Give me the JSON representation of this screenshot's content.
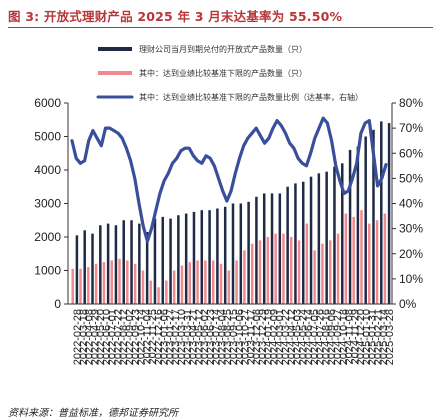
{
  "title": "图 3: 开放式理财产品 2025 年 3 月末达基率为 55.50%",
  "source": "资料来源：普益标准，德邦证券研究所",
  "colors": {
    "total": "#1f2a44",
    "reached": "#f08a8e",
    "ratio": "#3a4f9c",
    "title": "#b8363a"
  },
  "chart_data": {
    "type": "bar",
    "title": "图 3: 开放式理财产品 2025 年 3 月末达基率为 55.50%",
    "xlabel": "",
    "ylabel": "",
    "ylim": [
      0,
      6000
    ],
    "y2lim": [
      0,
      0.8
    ],
    "yticks": [
      "0",
      "1000",
      "2000",
      "3000",
      "4000",
      "5000",
      "6000"
    ],
    "y2ticks": [
      "0%",
      "10%",
      "20%",
      "30%",
      "40%",
      "50%",
      "60%",
      "70%",
      "80%"
    ],
    "legend_position": "top-right",
    "grid": false,
    "x_tick_labels": [
      "2022-02-28",
      "2022-03-18",
      "2022-04-08",
      "2022-04-29",
      "2022-05-20",
      "2022-06-10",
      "2022-07-01",
      "2022-07-22",
      "2022-08-12",
      "2022-09-02",
      "2022-09-23",
      "2022-10-14",
      "2022-11-04",
      "2022-11-25",
      "2022-12-16",
      "2023-01-06",
      "2023-01-27",
      "2023-02-17",
      "2023-03-10",
      "2023-03-31",
      "2023-04-21",
      "2023-05-12",
      "2023-06-02",
      "2023-06-23",
      "2023-07-14",
      "2023-08-04",
      "2023-08-25",
      "2023-09-15",
      "2023-10-06",
      "2023-10-27",
      "2023-11-17",
      "2023-12-08",
      "2023-12-29",
      "2024-01-19",
      "2024-02-09",
      "2024-03-01",
      "2024-03-22",
      "2024-04-12",
      "2024-05-03",
      "2024-05-24",
      "2024-06-14",
      "2024-07-05",
      "2024-07-26",
      "2024-08-16",
      "2024-09-06",
      "2024-09-27",
      "2024-10-18",
      "2024-11-08",
      "2024-11-29",
      "2024-12-20",
      "2025-01-10",
      "2025-01-31",
      "2025-02-21",
      "2025-03-14",
      "2025-03-28"
    ],
    "series": [
      {
        "name": "理财公司当月到期兑付的开放式产品数量（只）",
        "type": "bar",
        "axis": "left",
        "values": [
          2050,
          2200,
          2100,
          2350,
          2400,
          2350,
          2500,
          2500,
          2400,
          2150,
          2550,
          2600,
          2550,
          2650,
          2700,
          2750,
          2800,
          2800,
          2850,
          2900,
          3000,
          3000,
          3050,
          3200,
          3300,
          3300,
          3300,
          3500,
          3600,
          3650,
          3800,
          3900,
          3950,
          4100,
          4200,
          4600,
          4700,
          5000,
          5200,
          5450,
          5400
        ]
      },
      {
        "name": "其中：达到业绩比较基准下限的产品数量（只）",
        "type": "bar",
        "axis": "left",
        "values": [
          1050,
          1050,
          1100,
          1200,
          1250,
          1300,
          1350,
          1300,
          1200,
          1000,
          700,
          500,
          700,
          1000,
          1150,
          1250,
          1300,
          1300,
          1300,
          1200,
          1000,
          1300,
          1600,
          1800,
          1900,
          2000,
          2100,
          2100,
          2000,
          1900,
          2400,
          1600,
          1800,
          1900,
          2100,
          2700,
          2600,
          2800,
          2400,
          2500,
          2700
        ]
      },
      {
        "name": "其中：达到业绩比较基准下限的产品数量比例（达基率，右轴）",
        "type": "line",
        "axis": "right",
        "values": [
          0.65,
          0.58,
          0.56,
          0.57,
          0.65,
          0.69,
          0.66,
          0.63,
          0.7,
          0.7,
          0.69,
          0.68,
          0.66,
          0.62,
          0.57,
          0.5,
          0.4,
          0.31,
          0.25,
          0.3,
          0.37,
          0.44,
          0.49,
          0.52,
          0.56,
          0.58,
          0.61,
          0.62,
          0.62,
          0.59,
          0.57,
          0.56,
          0.59,
          0.58,
          0.55,
          0.5,
          0.45,
          0.41,
          0.45,
          0.52,
          0.58,
          0.63,
          0.66,
          0.68,
          0.7,
          0.67,
          0.64,
          0.66,
          0.7,
          0.73,
          0.71,
          0.68,
          0.64,
          0.62,
          0.58,
          0.56,
          0.55,
          0.6,
          0.66,
          0.7,
          0.74,
          0.72,
          0.65,
          0.55,
          0.49,
          0.44,
          0.45,
          0.5,
          0.56,
          0.68,
          0.72,
          0.73,
          0.6,
          0.47,
          0.5,
          0.555
        ]
      }
    ]
  }
}
